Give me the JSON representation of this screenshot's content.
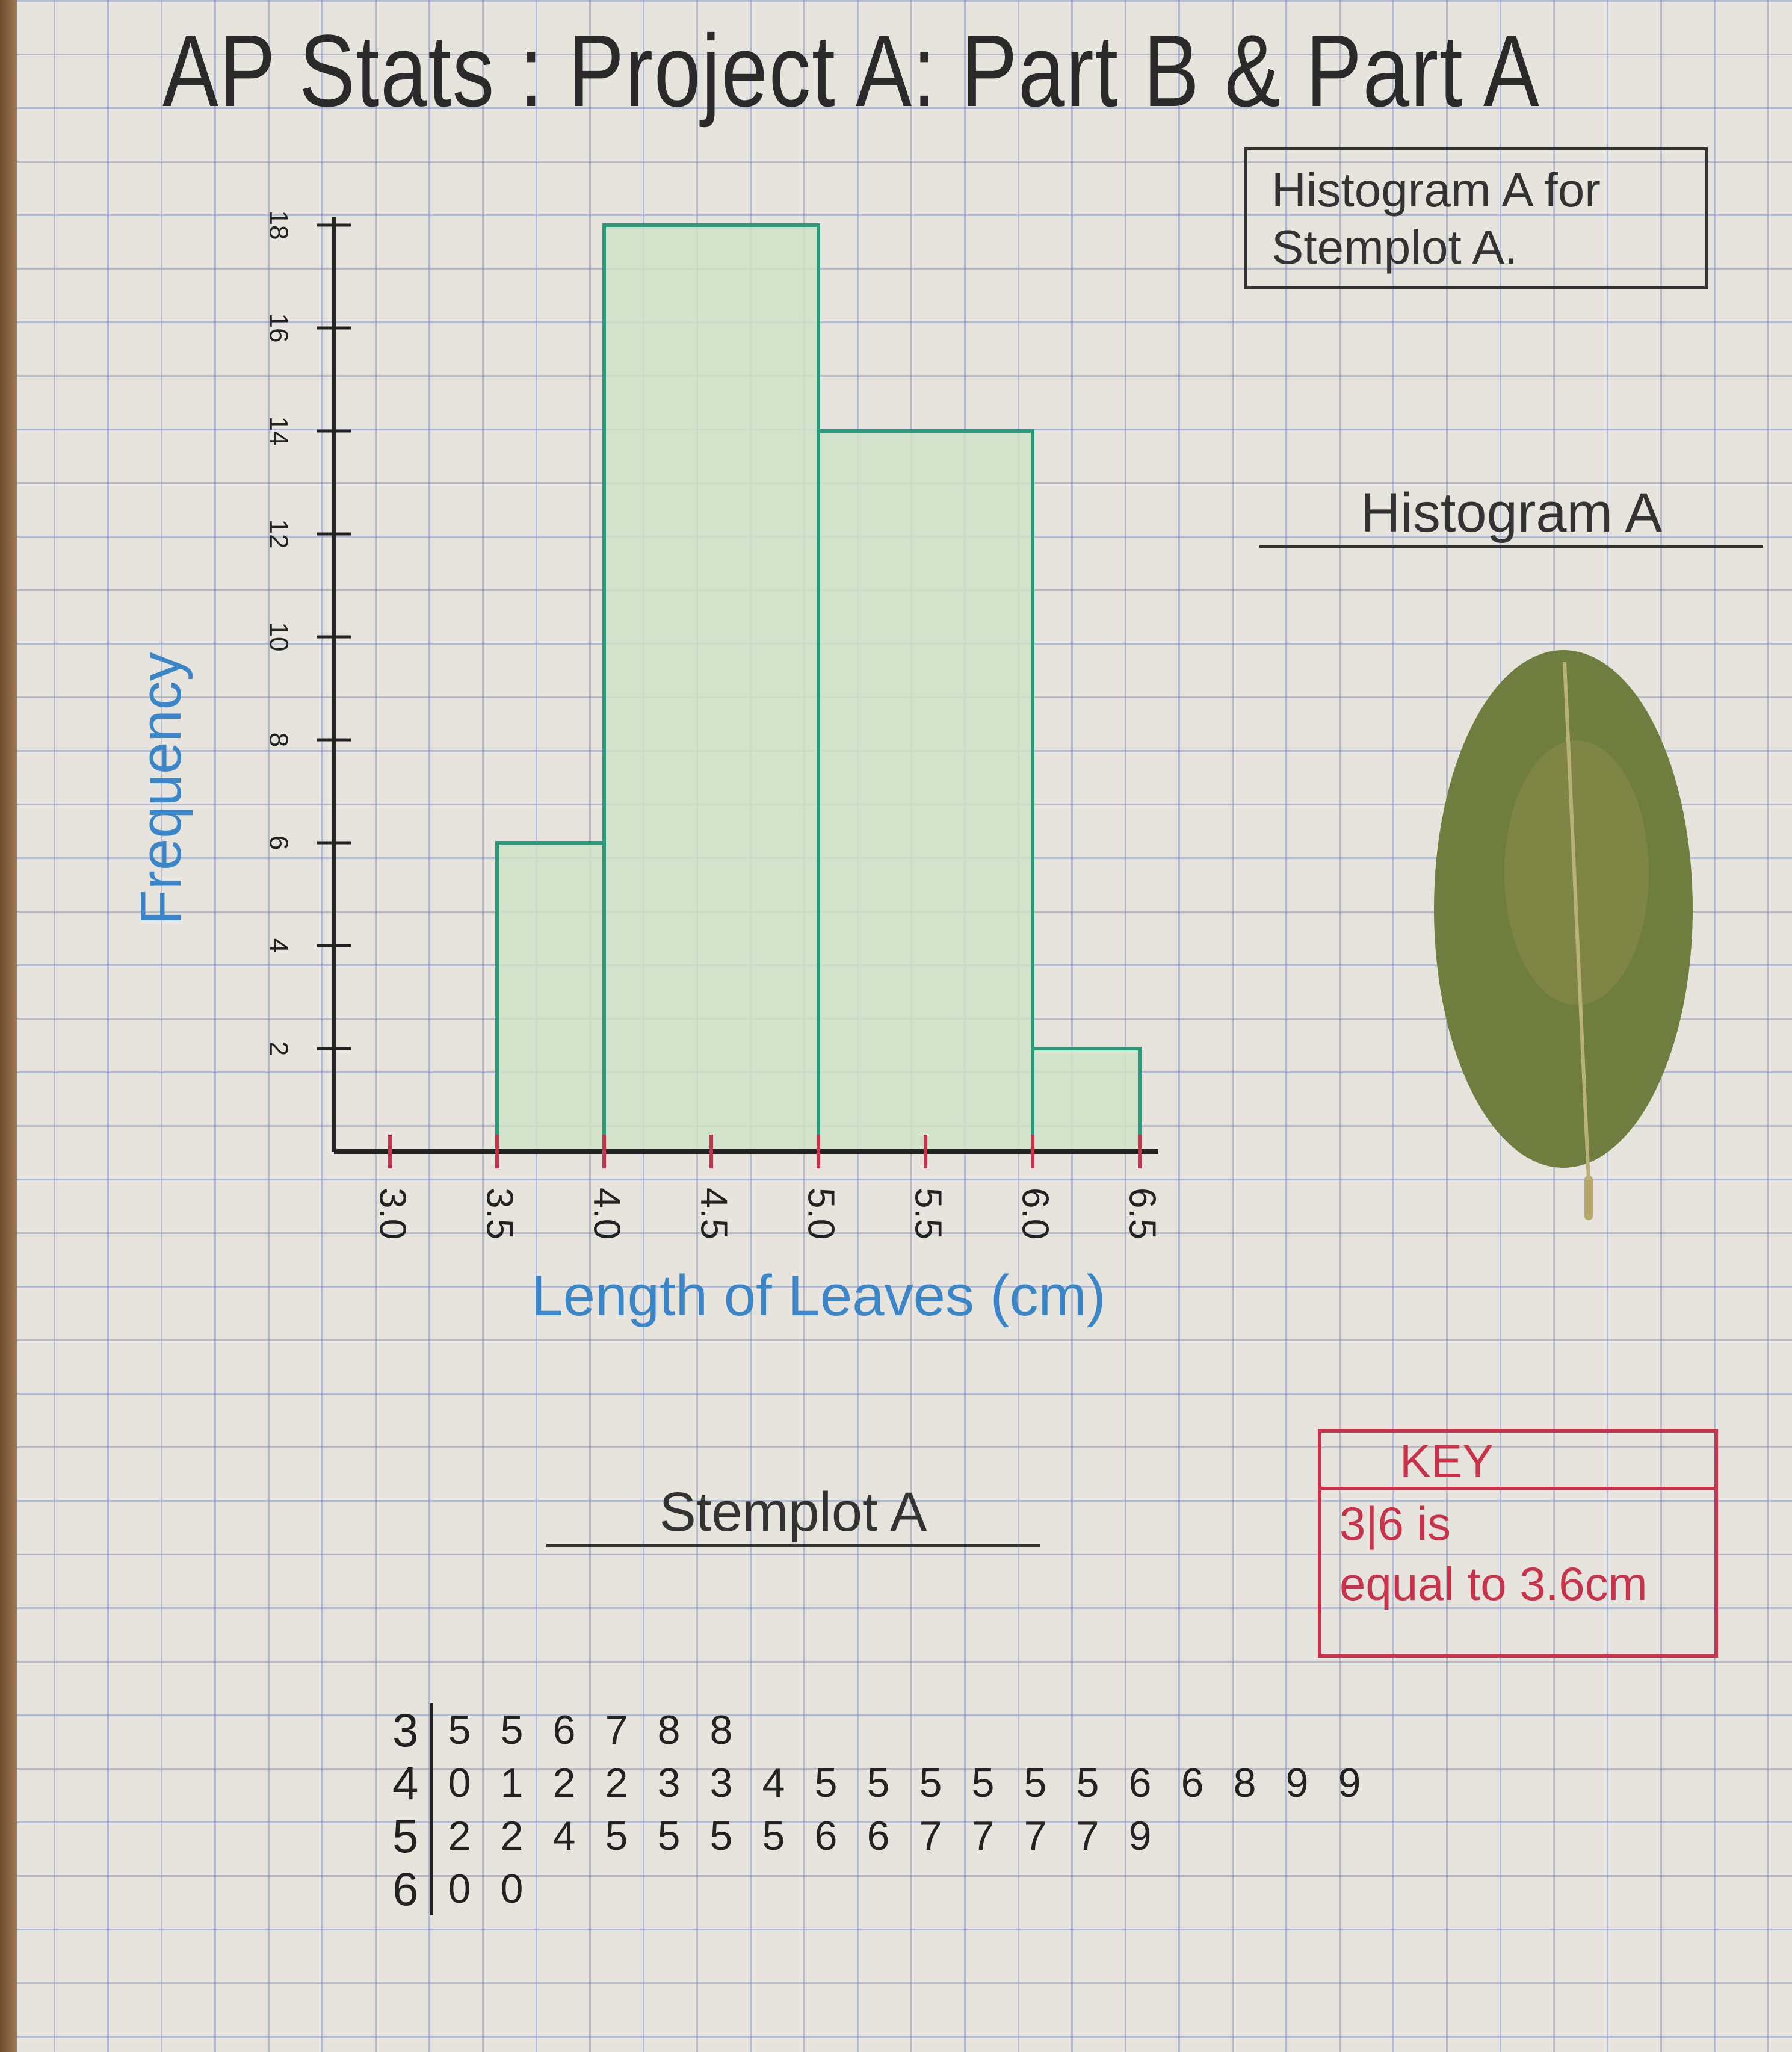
{
  "title": "AP Stats : Project A: Part B & Part A",
  "note_box": {
    "line1": "Histogram A for",
    "line2": "Stemplot A."
  },
  "histogram_label": "Histogram A",
  "stemplot_label": "Stemplot A",
  "key": {
    "heading": "KEY",
    "line1": "3|6 is",
    "line2": "equal to 3.6cm"
  },
  "colors": {
    "bar_fill": "#cfe3c8",
    "bar_outline": "#2a9a7a",
    "axis_label": "#3a86c8",
    "ticks": "#c8324a",
    "key": "#c8324a",
    "leaf": "#6f7d3e"
  },
  "chart_data": {
    "type": "bar",
    "xlabel": "Length of Leaves (cm)",
    "ylabel": "Frequency",
    "x_ticks": [
      "3.0",
      "3.5",
      "4.0",
      "4.5",
      "5.0",
      "5.5",
      "6.0",
      "6.5"
    ],
    "y_ticks": [
      "2",
      "4",
      "6",
      "8",
      "10",
      "12",
      "14",
      "16",
      "18"
    ],
    "xlim": [
      3.0,
      6.5
    ],
    "ylim": [
      0,
      18
    ],
    "grid": true,
    "bars": [
      {
        "from": 3.5,
        "to": 4.0,
        "value": 6
      },
      {
        "from": 4.0,
        "to": 5.0,
        "value": 18
      },
      {
        "from": 5.0,
        "to": 6.0,
        "value": 14
      },
      {
        "from": 6.0,
        "to": 6.5,
        "value": 2
      }
    ]
  },
  "stemplot": [
    {
      "stem": "3",
      "leaves": [
        "5",
        "5",
        "6",
        "7",
        "8",
        "8"
      ]
    },
    {
      "stem": "4",
      "leaves": [
        "0",
        "1",
        "2",
        "2",
        "3",
        "3",
        "4",
        "5",
        "5",
        "5",
        "5",
        "5",
        "5",
        "6",
        "6",
        "8",
        "9",
        "9"
      ]
    },
    {
      "stem": "5",
      "leaves": [
        "2",
        "2",
        "4",
        "5",
        "5",
        "5",
        "5",
        "6",
        "6",
        "7",
        "7",
        "7",
        "7",
        "9"
      ]
    },
    {
      "stem": "6",
      "leaves": [
        "0",
        "0"
      ]
    }
  ]
}
